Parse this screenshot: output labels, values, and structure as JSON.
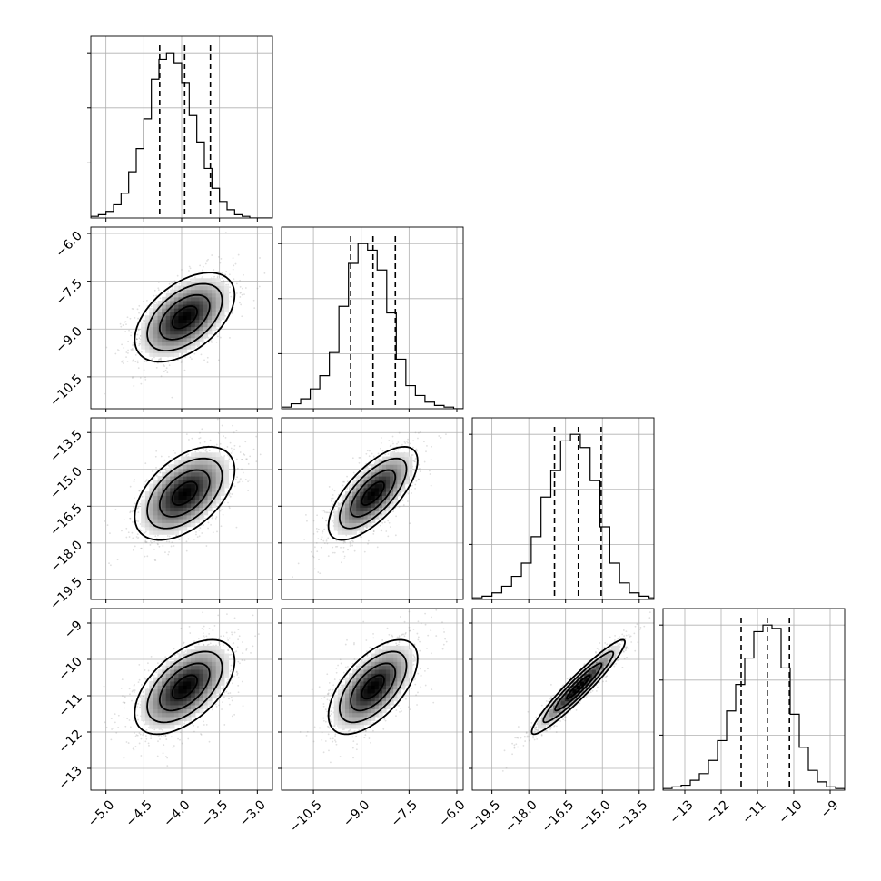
{
  "chart_data": {
    "type": "corner",
    "grid": true,
    "colors": {
      "line": "#000000",
      "grid": "#b0b0b0",
      "scatter": "#8c8c8c",
      "density_high": "#000000",
      "background": "#ffffff"
    },
    "parameters": [
      {
        "range": [
          -5.2,
          -2.8
        ],
        "ticks": [
          -5.0,
          -4.5,
          -4.0,
          -3.5,
          -3.0
        ],
        "tick_labels": [
          "−5.0",
          "−4.5",
          "−4.0",
          "−3.5",
          "−3.0"
        ],
        "quantiles": [
          -4.29,
          -3.96,
          -3.62
        ],
        "mean": -3.96,
        "std": 0.33
      },
      {
        "range": [
          -11.5,
          -5.8
        ],
        "ticks": [
          -10.5,
          -9.0,
          -7.5,
          -6.0
        ],
        "tick_labels": [
          "−10.5",
          "−9.0",
          "−7.5",
          "−6.0"
        ],
        "quantiles": [
          -9.33,
          -8.63,
          -7.93
        ],
        "mean": -8.63,
        "std": 0.7
      },
      {
        "range": [
          -20.3,
          -12.9
        ],
        "ticks": [
          -19.5,
          -18.0,
          -16.5,
          -15.0,
          -13.5
        ],
        "tick_labels": [
          "−19.5",
          "−18.0",
          "−16.5",
          "−15.0",
          "−13.5"
        ],
        "quantiles": [
          -16.95,
          -15.98,
          -15.05
        ],
        "mean": -15.98,
        "std": 0.95
      },
      {
        "range": [
          -13.6,
          -8.6
        ],
        "ticks": [
          -13,
          -12,
          -11,
          -10,
          -9
        ],
        "tick_labels": [
          "−13",
          "−12",
          "−11",
          "−10",
          "−9"
        ],
        "quantiles": [
          -11.45,
          -10.73,
          -10.12
        ],
        "mean": -10.76,
        "std": 0.65
      }
    ],
    "histograms": [
      {
        "parameter": 0,
        "bin_edges": [
          -5.2,
          -5.1,
          -5.0,
          -4.9,
          -4.8,
          -4.7,
          -4.6,
          -4.5,
          -4.4,
          -4.3,
          -4.2,
          -4.1,
          -4.0,
          -3.9,
          -3.8,
          -3.7,
          -3.6,
          -3.5,
          -3.4,
          -3.3,
          -3.2,
          -3.1,
          -3.0,
          -2.9,
          -2.8
        ],
        "counts": [
          1,
          2,
          4,
          8,
          15,
          28,
          42,
          60,
          84,
          96,
          100,
          94,
          82,
          62,
          46,
          30,
          18,
          10,
          5,
          2,
          1,
          0,
          0,
          0
        ]
      },
      {
        "parameter": 1,
        "bin_edges": [
          -11.5,
          -11.2,
          -10.9,
          -10.6,
          -10.3,
          -10.0,
          -9.7,
          -9.4,
          -9.1,
          -8.8,
          -8.5,
          -8.2,
          -7.9,
          -7.6,
          -7.3,
          -7.0,
          -6.7,
          -6.4,
          -6.1,
          -5.8
        ],
        "counts": [
          1,
          3,
          6,
          12,
          20,
          34,
          62,
          88,
          100,
          96,
          84,
          58,
          30,
          14,
          8,
          4,
          2,
          1,
          0
        ]
      },
      {
        "parameter": 2,
        "bin_edges": [
          -20.3,
          -19.9,
          -19.5,
          -19.1,
          -18.7,
          -18.3,
          -17.9,
          -17.5,
          -17.1,
          -16.7,
          -16.3,
          -15.9,
          -15.5,
          -15.1,
          -14.7,
          -14.3,
          -13.9,
          -13.5,
          -13.1,
          -12.9
        ],
        "counts": [
          1,
          2,
          4,
          8,
          14,
          22,
          38,
          62,
          78,
          96,
          100,
          92,
          72,
          44,
          22,
          10,
          4,
          2,
          1
        ]
      },
      {
        "parameter": 3,
        "bin_edges": [
          -13.6,
          -13.35,
          -13.1,
          -12.85,
          -12.6,
          -12.35,
          -12.1,
          -11.85,
          -11.6,
          -11.35,
          -11.1,
          -10.85,
          -10.6,
          -10.35,
          -10.1,
          -9.85,
          -9.6,
          -9.35,
          -9.1,
          -8.85,
          -8.6
        ],
        "counts": [
          1,
          2,
          3,
          6,
          10,
          18,
          30,
          48,
          64,
          80,
          96,
          100,
          98,
          74,
          46,
          26,
          12,
          5,
          2,
          1
        ]
      }
    ],
    "pairs": [
      {
        "x_param": 0,
        "y_param": 1,
        "correlation": 0.5
      },
      {
        "x_param": 0,
        "y_param": 2,
        "correlation": 0.5
      },
      {
        "x_param": 1,
        "y_param": 2,
        "correlation": 0.7
      },
      {
        "x_param": 0,
        "y_param": 3,
        "correlation": 0.55
      },
      {
        "x_param": 1,
        "y_param": 3,
        "correlation": 0.6
      },
      {
        "x_param": 2,
        "y_param": 3,
        "correlation": 0.95
      }
    ],
    "contour_levels_sigma": [
      0.5,
      1.0,
      1.5,
      2.0
    ],
    "scatter_points_per_panel": 1400
  }
}
